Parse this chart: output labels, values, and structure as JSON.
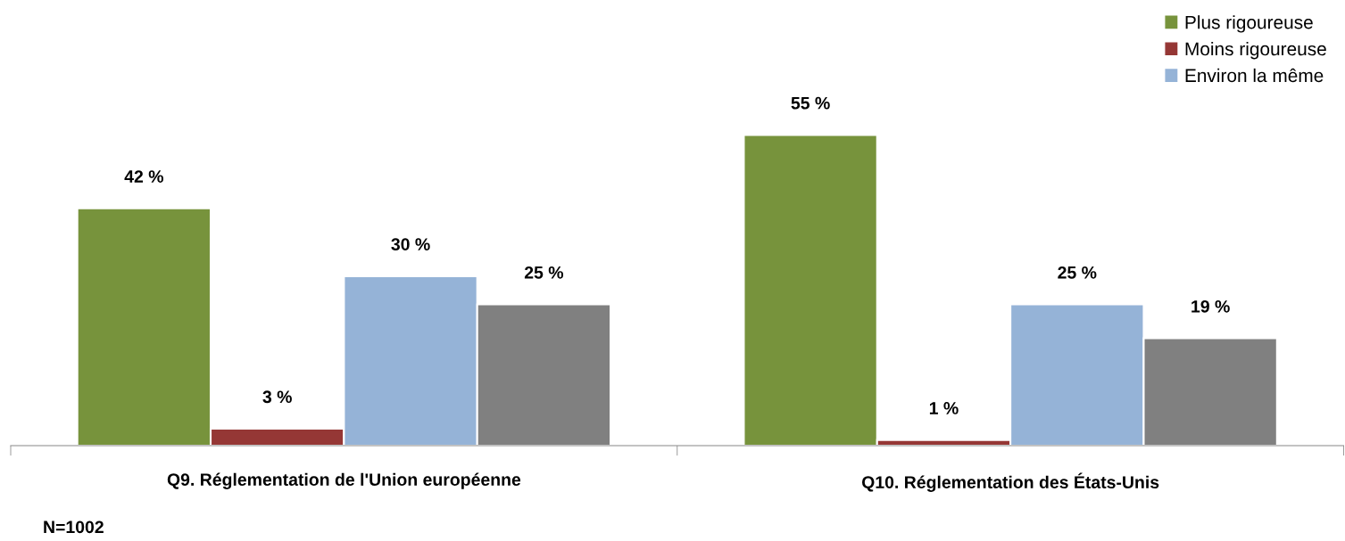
{
  "chart_data": {
    "type": "bar",
    "categories": [
      "Q9. Réglementation de l'Union européenne",
      "Q10. Réglementation des États-Unis"
    ],
    "series": [
      {
        "name": "Plus rigoureuse",
        "color": "#77933c",
        "values": [
          42,
          55
        ],
        "value_labels": [
          "42 %",
          "55 %"
        ]
      },
      {
        "name": "Moins rigoureuse",
        "color": "#953735",
        "values": [
          3,
          1
        ],
        "value_labels": [
          "3 %",
          "1 %"
        ]
      },
      {
        "name": "Environ la même",
        "color": "#95b3d7",
        "values": [
          30,
          25
        ],
        "value_labels": [
          "30 %",
          "25 %"
        ]
      },
      {
        "color": "#808080",
        "values": [
          25,
          19
        ],
        "value_labels": [
          "25 %",
          "19 %"
        ]
      }
    ],
    "legend": "top right",
    "grid": false,
    "annotations": [
      "N=1002"
    ]
  }
}
